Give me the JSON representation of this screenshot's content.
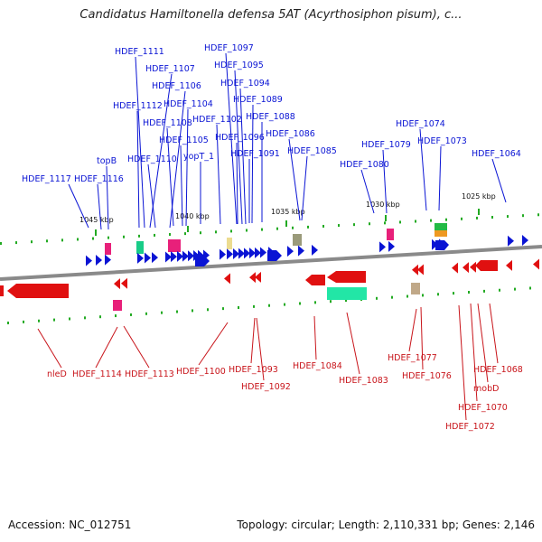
{
  "title": "Candidatus Hamiltonella defensa 5AT (Acyrthosiphon pisum), c...",
  "footer": {
    "accession": "Accession: NC_012751",
    "summary": "Topology: circular; Length: 2,110,331 bp; Genes: 2,146"
  },
  "colors": {
    "forward": "#0a14d4",
    "reverse": "#d40a0a",
    "backbone": "#8a8a8a",
    "dots": "#22aa22"
  },
  "scale_labels": [
    "1045 kbp",
    "1040 kbp",
    "1035 kbp",
    "1030 kbp",
    "1025 kbp"
  ],
  "top_labels": [
    "HDEF_1111",
    "HDEF_1097",
    "HDEF_1107",
    "HDEF_1095",
    "HDEF_1106",
    "HDEF_1094",
    "HDEF_1112",
    "HDEF_1104",
    "HDEF_1089",
    "HDEF_1108",
    "HDEF_1102",
    "HDEF_1088",
    "HDEF_1105",
    "HDEF_1096",
    "HDEF_1086",
    "HDEF_1074",
    "HDEF_1110",
    "yopT_1",
    "HDEF_1091",
    "HDEF_1085",
    "HDEF_1079",
    "HDEF_1073",
    "topB",
    "HDEF_1080",
    "HDEF_1064",
    "HDEF_1117",
    "HDEF_1116"
  ],
  "bottom_labels": [
    "nleD",
    "HDEF_1114",
    "HDEF_1113",
    "HDEF_1100",
    "HDEF_1093",
    "HDEF_1092",
    "HDEF_1084",
    "HDEF_1083",
    "HDEF_1077",
    "HDEF_1076",
    "HDEF_1068",
    "mobD",
    "HDEF_1070",
    "HDEF_1072"
  ]
}
